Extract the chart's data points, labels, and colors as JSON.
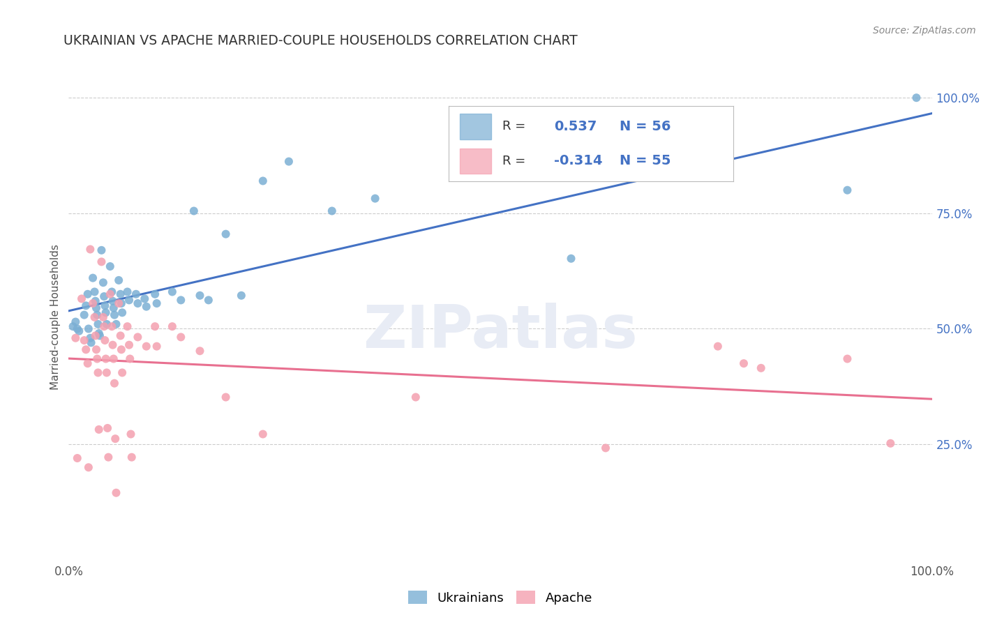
{
  "title": "UKRAINIAN VS APACHE MARRIED-COUPLE HOUSEHOLDS CORRELATION CHART",
  "source": "Source: ZipAtlas.com",
  "ylabel": "Married-couple Households",
  "xlim": [
    0,
    1
  ],
  "ylim": [
    0,
    1.05
  ],
  "xtick_positions": [
    0.0,
    0.25,
    0.5,
    0.75,
    1.0
  ],
  "xticklabels": [
    "0.0%",
    "",
    "",
    "",
    "100.0%"
  ],
  "ytick_positions": [
    0.25,
    0.5,
    0.75,
    1.0
  ],
  "yticklabels": [
    "25.0%",
    "50.0%",
    "75.0%",
    "100.0%"
  ],
  "ukrainian_color": "#7BAFD4",
  "apache_color": "#F4A0B0",
  "ukrainian_line_color": "#4472C4",
  "apache_line_color": "#E87090",
  "legend_text_color": "#333333",
  "legend_value_color": "#4472C4",
  "R_ukrainian": 0.537,
  "N_ukrainian": 56,
  "R_apache": -0.314,
  "N_apache": 55,
  "watermark_text": "ZIPatlas",
  "watermark_color": "#E8ECF5",
  "grid_color": "#CCCCCC",
  "ukrainian_points": [
    [
      0.005,
      0.505
    ],
    [
      0.008,
      0.515
    ],
    [
      0.01,
      0.5
    ],
    [
      0.012,
      0.495
    ],
    [
      0.018,
      0.53
    ],
    [
      0.02,
      0.55
    ],
    [
      0.022,
      0.575
    ],
    [
      0.023,
      0.5
    ],
    [
      0.025,
      0.48
    ],
    [
      0.026,
      0.47
    ],
    [
      0.028,
      0.61
    ],
    [
      0.03,
      0.58
    ],
    [
      0.031,
      0.56
    ],
    [
      0.032,
      0.545
    ],
    [
      0.033,
      0.53
    ],
    [
      0.034,
      0.51
    ],
    [
      0.035,
      0.49
    ],
    [
      0.036,
      0.485
    ],
    [
      0.038,
      0.67
    ],
    [
      0.04,
      0.6
    ],
    [
      0.041,
      0.57
    ],
    [
      0.042,
      0.55
    ],
    [
      0.043,
      0.535
    ],
    [
      0.044,
      0.51
    ],
    [
      0.048,
      0.635
    ],
    [
      0.05,
      0.58
    ],
    [
      0.051,
      0.56
    ],
    [
      0.052,
      0.545
    ],
    [
      0.053,
      0.53
    ],
    [
      0.055,
      0.51
    ],
    [
      0.058,
      0.605
    ],
    [
      0.06,
      0.575
    ],
    [
      0.061,
      0.555
    ],
    [
      0.062,
      0.535
    ],
    [
      0.068,
      0.58
    ],
    [
      0.07,
      0.562
    ],
    [
      0.078,
      0.575
    ],
    [
      0.08,
      0.555
    ],
    [
      0.088,
      0.565
    ],
    [
      0.09,
      0.548
    ],
    [
      0.1,
      0.575
    ],
    [
      0.102,
      0.555
    ],
    [
      0.12,
      0.58
    ],
    [
      0.13,
      0.562
    ],
    [
      0.145,
      0.755
    ],
    [
      0.152,
      0.572
    ],
    [
      0.162,
      0.562
    ],
    [
      0.182,
      0.705
    ],
    [
      0.2,
      0.572
    ],
    [
      0.225,
      0.82
    ],
    [
      0.255,
      0.862
    ],
    [
      0.305,
      0.755
    ],
    [
      0.355,
      0.782
    ],
    [
      0.582,
      0.652
    ],
    [
      0.902,
      0.8
    ],
    [
      0.982,
      1.0
    ]
  ],
  "apache_points": [
    [
      0.008,
      0.48
    ],
    [
      0.01,
      0.22
    ],
    [
      0.015,
      0.565
    ],
    [
      0.018,
      0.475
    ],
    [
      0.02,
      0.455
    ],
    [
      0.022,
      0.425
    ],
    [
      0.023,
      0.2
    ],
    [
      0.025,
      0.672
    ],
    [
      0.028,
      0.555
    ],
    [
      0.03,
      0.525
    ],
    [
      0.031,
      0.485
    ],
    [
      0.032,
      0.455
    ],
    [
      0.033,
      0.435
    ],
    [
      0.034,
      0.405
    ],
    [
      0.035,
      0.282
    ],
    [
      0.038,
      0.645
    ],
    [
      0.04,
      0.525
    ],
    [
      0.041,
      0.505
    ],
    [
      0.042,
      0.475
    ],
    [
      0.043,
      0.435
    ],
    [
      0.044,
      0.405
    ],
    [
      0.045,
      0.285
    ],
    [
      0.046,
      0.222
    ],
    [
      0.048,
      0.575
    ],
    [
      0.05,
      0.505
    ],
    [
      0.051,
      0.465
    ],
    [
      0.052,
      0.435
    ],
    [
      0.053,
      0.382
    ],
    [
      0.054,
      0.262
    ],
    [
      0.055,
      0.145
    ],
    [
      0.058,
      0.555
    ],
    [
      0.06,
      0.485
    ],
    [
      0.061,
      0.455
    ],
    [
      0.062,
      0.405
    ],
    [
      0.068,
      0.505
    ],
    [
      0.07,
      0.465
    ],
    [
      0.071,
      0.435
    ],
    [
      0.072,
      0.272
    ],
    [
      0.073,
      0.222
    ],
    [
      0.08,
      0.482
    ],
    [
      0.09,
      0.462
    ],
    [
      0.1,
      0.505
    ],
    [
      0.102,
      0.462
    ],
    [
      0.12,
      0.505
    ],
    [
      0.13,
      0.482
    ],
    [
      0.152,
      0.452
    ],
    [
      0.182,
      0.352
    ],
    [
      0.225,
      0.272
    ],
    [
      0.402,
      0.352
    ],
    [
      0.622,
      0.242
    ],
    [
      0.752,
      0.462
    ],
    [
      0.782,
      0.425
    ],
    [
      0.802,
      0.415
    ],
    [
      0.902,
      0.435
    ],
    [
      0.952,
      0.252
    ]
  ]
}
